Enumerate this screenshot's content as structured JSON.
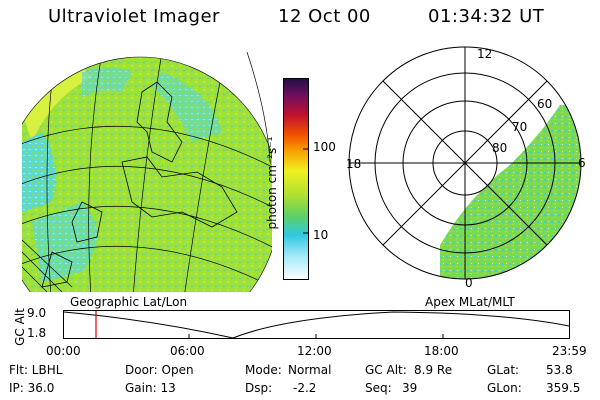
{
  "header": {
    "instrument": "Ultraviolet Imager",
    "date": "12 Oct 00",
    "time": "01:34:32 UT"
  },
  "colorbar": {
    "unit": "photon cm⁻²s⁻¹",
    "ticks": [
      "100",
      "10"
    ]
  },
  "polar": {
    "mlt_labels": {
      "top": "12",
      "left": "18",
      "right": "6",
      "bottom": "0"
    },
    "lat_labels": [
      "60",
      "70",
      "80"
    ]
  },
  "panel_labels": {
    "left": "Geographic Lat/Lon",
    "right": "Apex MLat/MLT"
  },
  "altitude_plot": {
    "ylabel": "GC Alt",
    "yticks": [
      "9.0",
      "1.8"
    ],
    "xticks": [
      "00:00",
      "06:00",
      "12:00",
      "18:00",
      "23:59"
    ],
    "marker_time": "01:34",
    "marker_color": "#e00000"
  },
  "info": {
    "flt": "Flt: LBHL",
    "ip": "IP: 36.0",
    "door": "Door: Open",
    "gain": "Gain: 13",
    "mode_label": "Mode:",
    "mode_value": "Normal",
    "dsp_label": "Dsp:",
    "dsp_value": "-2.2",
    "gcalt_label": "GC Alt:",
    "gcalt_value": "8.9 Re",
    "seq_label": "Seq:",
    "seq_value": "39",
    "glat_label": "GLat:",
    "glat_value": "53.8",
    "glon_label": "GLon:",
    "glon_value": "359.5"
  },
  "colors": {
    "green": "#a0e030",
    "cyan": "#40d0e0",
    "yellow": "#e8f030"
  }
}
